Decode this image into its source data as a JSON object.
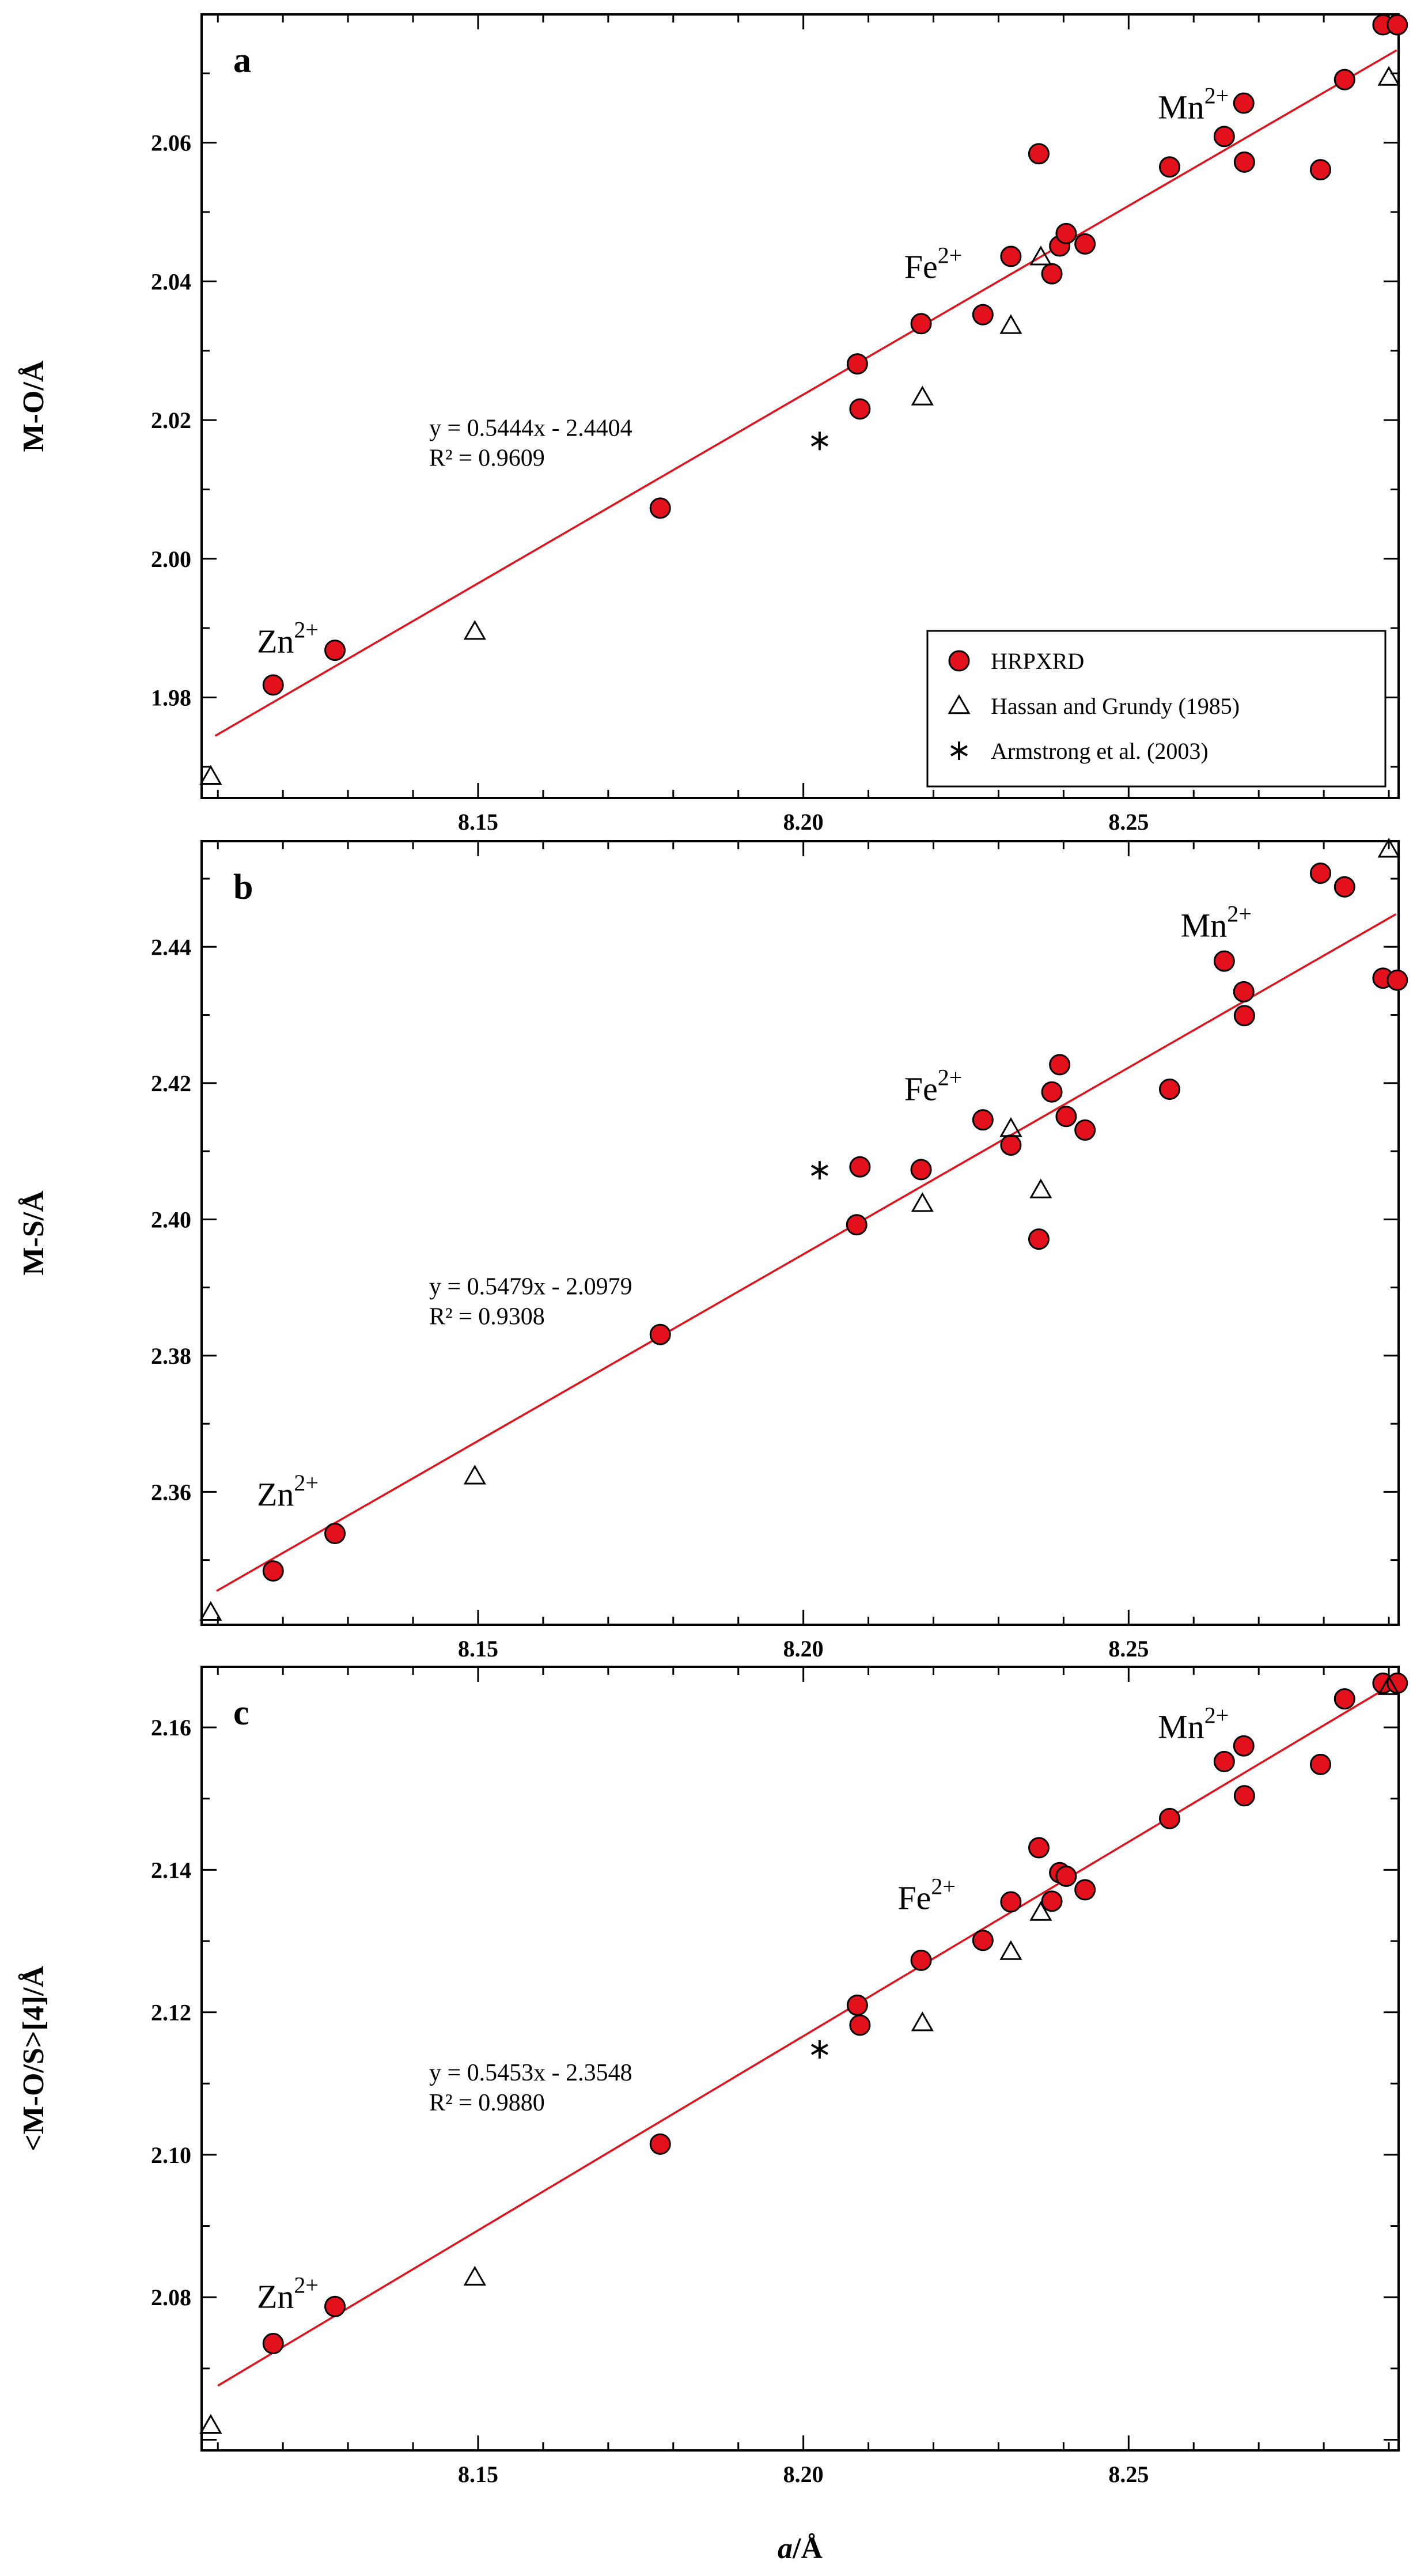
{
  "figure": {
    "x_axis_label": "a/Å",
    "legend": {
      "placement": "bottom-right of panel a",
      "entries": [
        {
          "key": "hrpxrd",
          "label": "HRPXRD",
          "marker": "red-filled-circle"
        },
        {
          "key": "hassan",
          "label": "Hassan and Grundy (1985)",
          "marker": "open-triangle"
        },
        {
          "key": "armstrong",
          "label": "Armstrong et al. (2003)",
          "marker": "asterisk"
        }
      ]
    },
    "colors": {
      "hrpxrd_fill": "#e3111b",
      "fit_line": "#e3111b",
      "outline": "#000000"
    }
  },
  "chart_data": [
    {
      "type": "scatter",
      "panel": "a",
      "ylabel": "M-O/Å",
      "xlabel": "a/Å",
      "xlim": [
        8.1075,
        8.2915
      ],
      "ylim": [
        1.9655,
        2.0785
      ],
      "x_ticks": [
        8.15,
        8.2,
        8.25
      ],
      "x_tick_labels": [
        "8.15",
        "8.20",
        "8.25"
      ],
      "y_ticks": [
        1.98,
        2.0,
        2.02,
        2.04,
        2.06
      ],
      "y_tick_labels": [
        "1.98",
        "2.00",
        "2.02",
        "2.04",
        "2.06"
      ],
      "equation": "y = 0.5444x - 2.4404",
      "r2_label": "R² = 0.9609",
      "fit": {
        "slope": 0.5444,
        "intercept": -2.4404,
        "x_range": [
          8.1096,
          8.2912
        ]
      },
      "annotations": [
        {
          "base": "Zn",
          "sup": "2+",
          "x": 8.116,
          "y": 1.9865
        },
        {
          "base": "Fe",
          "sup": "2+",
          "x": 8.2155,
          "y": 2.0405
        },
        {
          "base": "Mn",
          "sup": "2+",
          "x": 8.2545,
          "y": 2.0635
        }
      ],
      "series": [
        {
          "name": "HRPXRD",
          "key": "hrpxrd",
          "points": [
            [
              8.1185,
              1.9818
            ],
            [
              8.128,
              1.9868
            ],
            [
              8.178,
              2.0073
            ],
            [
              8.2083,
              2.0281
            ],
            [
              8.2087,
              2.0216
            ],
            [
              8.2181,
              2.0339
            ],
            [
              8.2276,
              2.0352
            ],
            [
              8.2319,
              2.0436
            ],
            [
              8.2362,
              2.0584
            ],
            [
              8.2382,
              2.0411
            ],
            [
              8.2394,
              2.0451
            ],
            [
              8.2404,
              2.0469
            ],
            [
              8.2433,
              2.0454
            ],
            [
              8.2563,
              2.0565
            ],
            [
              8.2647,
              2.0609
            ],
            [
              8.2677,
              2.0657
            ],
            [
              8.2678,
              2.0572
            ],
            [
              8.2795,
              2.0561
            ],
            [
              8.2832,
              2.0691
            ],
            [
              8.2891,
              2.077
            ],
            [
              8.2913,
              2.077
            ]
          ]
        },
        {
          "name": "Hassan and Grundy (1985)",
          "key": "hassan",
          "points": [
            [
              8.1089,
              1.9686
            ],
            [
              8.1495,
              1.9895
            ],
            [
              8.2183,
              2.0233
            ],
            [
              8.2319,
              2.0336
            ],
            [
              8.2365,
              2.0435
            ],
            [
              8.29,
              2.0694
            ]
          ]
        },
        {
          "name": "Armstrong et al. (2003)",
          "key": "armstrong",
          "points": [
            [
              8.2025,
              2.017
            ]
          ]
        }
      ]
    },
    {
      "type": "scatter",
      "panel": "b",
      "ylabel": "M-S/Å",
      "xlabel": "a/Å",
      "xlim": [
        8.1075,
        8.2915
      ],
      "ylim": [
        2.3405,
        2.4555
      ],
      "x_ticks": [
        8.15,
        8.2,
        8.25
      ],
      "x_tick_labels": [
        "8.15",
        "8.20",
        "8.25"
      ],
      "y_ticks": [
        2.36,
        2.38,
        2.4,
        2.42,
        2.44
      ],
      "y_tick_labels": [
        "2.36",
        "2.38",
        "2.40",
        "2.42",
        "2.44"
      ],
      "equation": "y = 0.5479x - 2.0979",
      "r2_label": "R² = 0.9308",
      "fit": {
        "slope": 0.5479,
        "intercept": -2.0979,
        "x_range": [
          8.1098,
          8.2911
        ]
      },
      "annotations": [
        {
          "base": "Zn",
          "sup": "2+",
          "x": 8.116,
          "y": 2.358
        },
        {
          "base": "Fe",
          "sup": "2+",
          "x": 8.2155,
          "y": 2.4175
        },
        {
          "base": "Mn",
          "sup": "2+",
          "x": 8.258,
          "y": 2.4415
        }
      ],
      "series": [
        {
          "name": "HRPXRD",
          "key": "hrpxrd",
          "points": [
            [
              8.1185,
              2.3484
            ],
            [
              8.128,
              2.3539
            ],
            [
              8.178,
              2.3831
            ],
            [
              8.2082,
              2.3992
            ],
            [
              8.2087,
              2.4077
            ],
            [
              8.2181,
              2.4073
            ],
            [
              8.2276,
              2.4146
            ],
            [
              8.2319,
              2.4109
            ],
            [
              8.2362,
              2.3971
            ],
            [
              8.2382,
              2.4187
            ],
            [
              8.2394,
              2.4227
            ],
            [
              8.2404,
              2.4151
            ],
            [
              8.2433,
              2.4131
            ],
            [
              8.2563,
              2.4191
            ],
            [
              8.2647,
              2.4379
            ],
            [
              8.2677,
              2.4334
            ],
            [
              8.2678,
              2.4299
            ],
            [
              8.2795,
              2.4508
            ],
            [
              8.2832,
              2.4488
            ],
            [
              8.2891,
              2.4354
            ],
            [
              8.2913,
              2.4351
            ]
          ]
        },
        {
          "name": "Hassan and Grundy (1985)",
          "key": "hassan",
          "points": [
            [
              8.1089,
              2.3423
            ],
            [
              8.1495,
              2.3623
            ],
            [
              8.2183,
              2.4023
            ],
            [
              8.2319,
              2.4133
            ],
            [
              8.2365,
              2.4043
            ],
            [
              8.29,
              2.4543
            ]
          ]
        },
        {
          "name": "Armstrong et al. (2003)",
          "key": "armstrong",
          "points": [
            [
              8.2025,
              2.4072
            ]
          ]
        }
      ]
    },
    {
      "type": "scatter",
      "panel": "c",
      "ylabel": "<M-O/S>[4]/Å",
      "xlabel": "a/Å",
      "xlim": [
        8.1075,
        8.2915
      ],
      "ylim": [
        2.0585,
        2.1685
      ],
      "x_ticks": [
        8.15,
        8.2,
        8.25
      ],
      "x_tick_labels": [
        "8.15",
        "8.20",
        "8.25"
      ],
      "y_ticks": [
        2.08,
        2.1,
        2.12,
        2.14,
        2.16
      ],
      "y_tick_labels": [
        "2.08",
        "2.10",
        "2.12",
        "2.14",
        "2.16"
      ],
      "equation": "y = 0.5453x - 2.3548",
      "r2_label": "R² = 0.9880",
      "fit": {
        "slope": 0.5453,
        "intercept": -2.3548,
        "x_range": [
          8.11,
          8.2912
        ]
      },
      "annotations": [
        {
          "base": "Zn",
          "sup": "2+",
          "x": 8.116,
          "y": 2.0785
        },
        {
          "base": "Fe",
          "sup": "2+",
          "x": 8.2145,
          "y": 2.1345
        },
        {
          "base": "Mn",
          "sup": "2+",
          "x": 8.2545,
          "y": 2.1585
        }
      ],
      "series": [
        {
          "name": "HRPXRD",
          "key": "hrpxrd",
          "points": [
            [
              8.1185,
              2.0735
            ],
            [
              8.128,
              2.0787
            ],
            [
              8.178,
              2.1015
            ],
            [
              8.2083,
              2.121
            ],
            [
              8.2087,
              2.1182
            ],
            [
              8.2181,
              2.1273
            ],
            [
              8.2276,
              2.1301
            ],
            [
              8.2319,
              2.1355
            ],
            [
              8.2362,
              2.1431
            ],
            [
              8.2382,
              2.1356
            ],
            [
              8.2394,
              2.1396
            ],
            [
              8.2404,
              2.1391
            ],
            [
              8.2433,
              2.1372
            ],
            [
              8.2563,
              2.1472
            ],
            [
              8.2647,
              2.1552
            ],
            [
              8.2677,
              2.1574
            ],
            [
              8.2678,
              2.1504
            ],
            [
              8.2795,
              2.1548
            ],
            [
              8.2832,
              2.164
            ],
            [
              8.2891,
              2.1662
            ],
            [
              8.2913,
              2.1662
            ]
          ]
        },
        {
          "name": "Hassan and Grundy (1985)",
          "key": "hassan",
          "points": [
            [
              8.1089,
              2.062
            ],
            [
              8.1495,
              2.0828
            ],
            [
              8.2183,
              2.1185
            ],
            [
              8.2319,
              2.1285
            ],
            [
              8.2365,
              2.134
            ],
            [
              8.29,
              2.1657
            ]
          ]
        },
        {
          "name": "Armstrong et al. (2003)",
          "key": "armstrong",
          "points": [
            [
              8.2025,
              2.1148
            ]
          ]
        }
      ]
    }
  ]
}
